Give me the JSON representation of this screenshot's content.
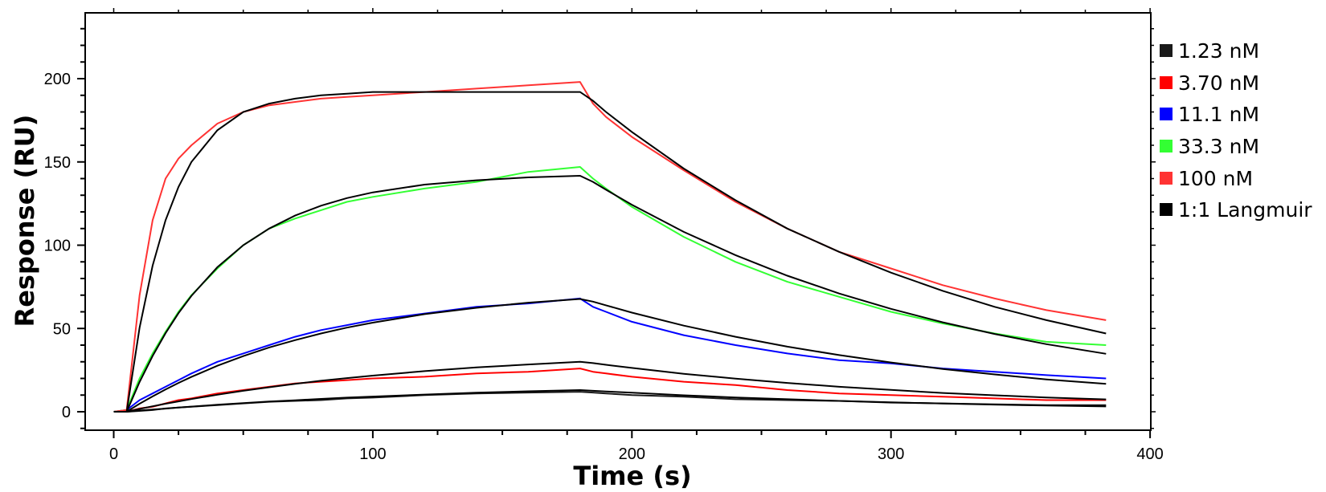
{
  "chart_data": {
    "type": "line",
    "title": "",
    "xlabel": "Time (s)",
    "ylabel": "Response (RU)",
    "xlim": [
      -11,
      400
    ],
    "ylim": [
      -11,
      240
    ],
    "x_ticks": [
      "0",
      "100",
      "200",
      "300",
      "400"
    ],
    "x_tick_values": [
      0,
      100,
      200,
      300,
      400
    ],
    "y_ticks": [
      "0",
      "50",
      "100",
      "150",
      "200"
    ],
    "y_tick_values": [
      0,
      50,
      100,
      150,
      200
    ],
    "grid": false,
    "legend_position": "right",
    "x": [
      0,
      5,
      10,
      15,
      20,
      25,
      30,
      40,
      50,
      60,
      70,
      80,
      90,
      100,
      120,
      140,
      160,
      180,
      185,
      190,
      200,
      220,
      240,
      260,
      280,
      300,
      320,
      340,
      360,
      383
    ],
    "series": [
      {
        "name": "1.23 nM",
        "color": "#1a1a1a",
        "values": [
          0,
          0,
          0.5,
          1,
          2,
          2.5,
          3,
          4,
          5,
          6,
          6.5,
          7,
          8,
          8.5,
          10,
          11,
          11.5,
          12,
          11.5,
          11,
          10,
          9,
          7.5,
          7,
          6.5,
          5.5,
          5,
          4.5,
          4,
          4
        ]
      },
      {
        "name": "3.70 nM",
        "color": "#ff0000",
        "values": [
          0,
          0,
          2,
          3,
          5,
          7,
          8,
          11,
          13,
          15,
          17,
          18,
          19,
          20,
          21,
          23,
          24,
          26,
          24,
          23,
          21,
          18,
          16,
          13,
          11,
          10,
          9,
          8,
          7,
          7
        ]
      },
      {
        "name": "11.1 nM",
        "color": "#0000ff",
        "values": [
          0,
          1,
          7,
          11,
          15,
          19,
          23,
          30,
          35,
          40,
          45,
          49,
          52,
          55,
          59,
          63,
          65,
          68,
          63,
          60,
          54,
          46,
          40,
          35,
          31,
          29,
          26,
          24,
          22,
          20
        ]
      },
      {
        "name": "33.3 nM",
        "color": "#33ff33",
        "values": [
          0,
          1,
          20,
          35,
          48,
          60,
          70,
          86,
          100,
          110,
          116,
          121,
          126,
          129,
          134,
          138,
          144,
          147,
          140,
          134,
          123,
          105,
          90,
          78,
          69,
          60,
          53,
          47,
          42,
          40
        ]
      },
      {
        "name": "100 nM",
        "color": "#ff3333",
        "values": [
          0,
          1,
          70,
          115,
          140,
          152,
          160,
          173,
          180,
          184,
          186,
          188,
          189,
          190,
          192,
          194,
          196,
          198,
          185,
          177,
          165,
          145,
          126,
          110,
          96,
          86,
          76,
          68,
          61,
          55
        ]
      }
    ],
    "fit": {
      "name": "1:1 Langmuir",
      "color": "#000000",
      "curves": [
        [
          0,
          0,
          0.7,
          1.3,
          1.9,
          2.5,
          3.1,
          4.2,
          5.2,
          6.1,
          6.9,
          7.7,
          8.5,
          9.1,
          10.3,
          11.4,
          12.3,
          13,
          12.6,
          12.2,
          11.4,
          9.9,
          8.6,
          7.5,
          6.5,
          5.7,
          4.9,
          4.3,
          3.7,
          3.2
        ],
        [
          0,
          0,
          1.7,
          3.3,
          4.8,
          6.2,
          7.6,
          10.2,
          12.6,
          14.7,
          16.7,
          18.6,
          20.2,
          21.7,
          24.4,
          26.6,
          28.4,
          30,
          29.2,
          28.2,
          26.3,
          22.8,
          19.9,
          17.3,
          15,
          13.1,
          11.3,
          9.9,
          8.6,
          7.4
        ],
        [
          0,
          0,
          4.8,
          9.2,
          13.4,
          17.3,
          20.9,
          27.6,
          33.4,
          38.6,
          43,
          47,
          50.5,
          53.5,
          58.6,
          62.4,
          65.5,
          67.7,
          66.1,
          63.9,
          59.5,
          51.7,
          45,
          39.1,
          34,
          29.6,
          25.7,
          22.4,
          19.4,
          16.7
        ],
        [
          0,
          0,
          17.9,
          33.5,
          47.2,
          59.2,
          69.6,
          86.8,
          100,
          110,
          117.8,
          123.7,
          128.3,
          131.7,
          136.4,
          139,
          140.7,
          141.7,
          138,
          133.3,
          124.3,
          108,
          94,
          81.7,
          71,
          61.8,
          53.7,
          46.7,
          40.6,
          34.8
        ],
        [
          0,
          0,
          50.5,
          87.7,
          115,
          135,
          150,
          169,
          180,
          185,
          188,
          190,
          191,
          192,
          192,
          192,
          192,
          192,
          186.7,
          180,
          168,
          146,
          127,
          110,
          96,
          83.5,
          72.6,
          63,
          55,
          47
        ]
      ]
    },
    "legend": [
      {
        "label": "1.23 nM",
        "color": "#1a1a1a"
      },
      {
        "label": "3.70 nM",
        "color": "#ff0000"
      },
      {
        "label": "11.1 nM",
        "color": "#0000ff"
      },
      {
        "label": "33.3 nM",
        "color": "#33ff33"
      },
      {
        "label": "100 nM",
        "color": "#ff3333"
      },
      {
        "label": "1:1 Langmuir",
        "color": "#000000"
      }
    ]
  }
}
